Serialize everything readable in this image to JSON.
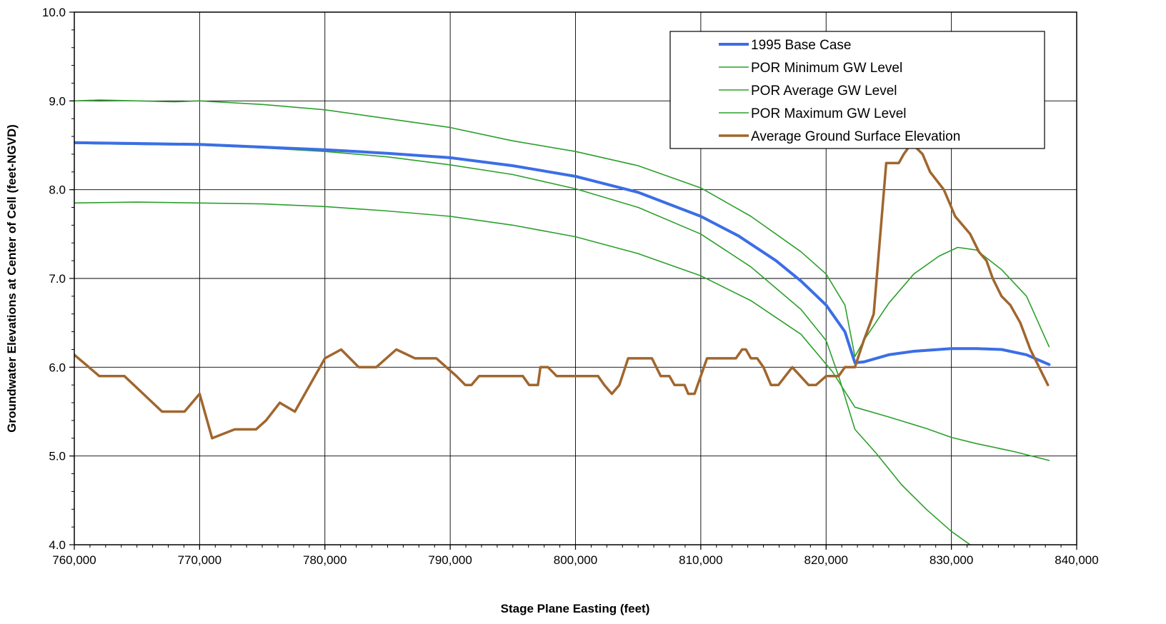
{
  "chart_data": {
    "type": "line",
    "title": "",
    "xlabel": "Stage Plane Easting (feet)",
    "ylabel": "Groundwater Elevations at Center of Cell (feet-NGVD)",
    "xlim": [
      760000,
      840000
    ],
    "ylim": [
      4.0,
      10.0
    ],
    "x_ticks": [
      760000,
      770000,
      780000,
      790000,
      800000,
      810000,
      820000,
      830000,
      840000
    ],
    "x_tick_labels": [
      "760,000",
      "770,000",
      "780,000",
      "790,000",
      "800,000",
      "810,000",
      "820,000",
      "830,000",
      "840,000"
    ],
    "y_ticks": [
      4.0,
      5.0,
      6.0,
      7.0,
      8.0,
      9.0,
      10.0
    ],
    "y_tick_labels": [
      "4.0",
      "5.0",
      "6.0",
      "7.0",
      "8.0",
      "9.0",
      "10.0"
    ],
    "grid": true,
    "legend_position": "top-right",
    "series": [
      {
        "name": "1995 Base Case",
        "color": "#3b6ee6",
        "width": 4,
        "x": [
          760000,
          765000,
          770000,
          775000,
          780000,
          785000,
          790000,
          795000,
          800000,
          805000,
          810000,
          813000,
          816000,
          818000,
          820000,
          821500,
          822300,
          823000,
          825000,
          827000,
          830000,
          832000,
          834000,
          836000,
          837800
        ],
        "y": [
          8.53,
          8.52,
          8.51,
          8.48,
          8.45,
          8.41,
          8.36,
          8.27,
          8.15,
          7.97,
          7.7,
          7.48,
          7.2,
          6.97,
          6.7,
          6.4,
          6.05,
          6.06,
          6.14,
          6.18,
          6.21,
          6.21,
          6.2,
          6.14,
          6.03
        ]
      },
      {
        "name": "POR Minimum GW Level",
        "color": "#2ca02c",
        "width": 1.6,
        "x": [
          760000,
          765000,
          770000,
          775000,
          780000,
          785000,
          790000,
          795000,
          800000,
          805000,
          810000,
          814000,
          818000,
          820500,
          822300,
          825000,
          828000,
          830000,
          832000,
          835000,
          837800
        ],
        "y": [
          7.85,
          7.86,
          7.85,
          7.84,
          7.81,
          7.76,
          7.7,
          7.6,
          7.47,
          7.28,
          7.03,
          6.75,
          6.37,
          5.95,
          5.55,
          5.44,
          5.31,
          5.21,
          5.14,
          5.05,
          4.95
        ]
      },
      {
        "name": "POR Average GW Level",
        "color": "#2ca02c",
        "width": 1.6,
        "x": [
          760000,
          765000,
          770000,
          775000,
          780000,
          785000,
          790000,
          795000,
          800000,
          805000,
          810000,
          814000,
          818000,
          820000,
          821000,
          822300,
          824000,
          826000,
          828000,
          830000,
          831500
        ],
        "y": [
          8.52,
          8.51,
          8.5,
          8.47,
          8.43,
          8.37,
          8.28,
          8.17,
          8.01,
          7.8,
          7.5,
          7.13,
          6.65,
          6.3,
          5.9,
          5.3,
          5.03,
          4.68,
          4.4,
          4.15,
          4.0
        ]
      },
      {
        "name": "POR Maximum GW Level",
        "color": "#2ca02c",
        "width": 1.6,
        "x": [
          760000,
          762000,
          765000,
          768000,
          770000,
          775000,
          780000,
          785000,
          790000,
          795000,
          800000,
          805000,
          810000,
          814000,
          818000,
          820000,
          821500,
          822300,
          823000,
          825000,
          827000,
          829000,
          830500,
          832000,
          834000,
          836000,
          837800
        ],
        "y": [
          9.0,
          9.01,
          9.0,
          8.99,
          9.0,
          8.96,
          8.9,
          8.8,
          8.7,
          8.55,
          8.43,
          8.27,
          8.02,
          7.7,
          7.3,
          7.05,
          6.7,
          6.12,
          6.3,
          6.72,
          7.05,
          7.25,
          7.35,
          7.32,
          7.1,
          6.8,
          6.23
        ]
      },
      {
        "name": "Average Ground Surface Elevation",
        "color": "#a0662e",
        "width": 3.5,
        "x": [
          760000,
          762000,
          764000,
          765500,
          767000,
          768800,
          770000,
          771000,
          772800,
          773500,
          774500,
          775300,
          776400,
          777600,
          780000,
          781300,
          782700,
          784100,
          785700,
          787200,
          788900,
          790500,
          791200,
          791700,
          792300,
          793000,
          794800,
          795800,
          796300,
          797000,
          797200,
          797800,
          798500,
          801800,
          802300,
          802900,
          803500,
          804200,
          804700,
          805500,
          806100,
          806800,
          807500,
          807900,
          808700,
          809000,
          809500,
          810500,
          812000,
          812800,
          813300,
          813600,
          814000,
          814500,
          815000,
          815600,
          816200,
          817300,
          818600,
          819200,
          820000,
          821000,
          821500,
          822300,
          823000,
          823800,
          824800,
          825300,
          825800,
          826200,
          826700,
          827000,
          827700,
          828300,
          829400,
          830300,
          830900,
          831500,
          832200,
          832800,
          833300,
          834000,
          834700,
          835500,
          836300,
          837000,
          837700
        ],
        "y": [
          6.14,
          5.9,
          5.9,
          5.7,
          5.5,
          5.5,
          5.7,
          5.2,
          5.3,
          5.3,
          5.3,
          5.4,
          5.6,
          5.5,
          6.1,
          6.2,
          6.0,
          6.0,
          6.2,
          6.1,
          6.1,
          5.9,
          5.8,
          5.8,
          5.9,
          5.9,
          5.9,
          5.9,
          5.8,
          5.8,
          6.0,
          6.0,
          5.9,
          5.9,
          5.8,
          5.7,
          5.8,
          6.1,
          6.1,
          6.1,
          6.1,
          5.9,
          5.9,
          5.8,
          5.8,
          5.7,
          5.7,
          6.1,
          6.1,
          6.1,
          6.2,
          6.2,
          6.1,
          6.1,
          6.0,
          5.8,
          5.8,
          6.0,
          5.8,
          5.8,
          5.9,
          5.9,
          6.0,
          6.0,
          6.3,
          6.6,
          8.3,
          8.3,
          8.3,
          8.4,
          8.5,
          8.5,
          8.4,
          8.2,
          8.0,
          7.7,
          7.6,
          7.5,
          7.3,
          7.2,
          7.0,
          6.8,
          6.7,
          6.5,
          6.2,
          6.0,
          5.8
        ]
      }
    ]
  }
}
